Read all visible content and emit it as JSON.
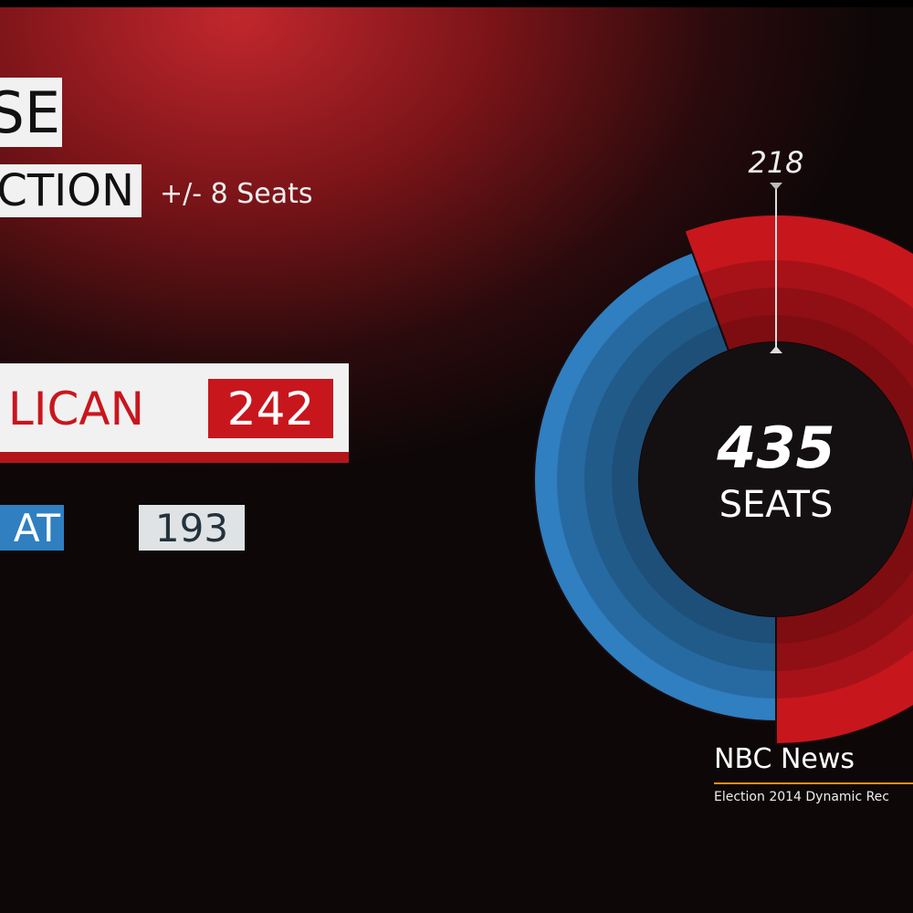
{
  "header": {
    "title": "SE",
    "subtitle": "CTION",
    "margin": "+/- 8 Seats"
  },
  "chart_data": {
    "type": "donut",
    "categories": [
      "LICAN",
      "AT"
    ],
    "values": [
      242,
      193
    ],
    "colors": [
      "#c8161d",
      "#2f7fc1"
    ],
    "total": 435,
    "total_label": "SEATS",
    "majority": 218
  },
  "footer": {
    "brand": "NBC News",
    "caption": "Election 2014 Dynamic Rec"
  }
}
